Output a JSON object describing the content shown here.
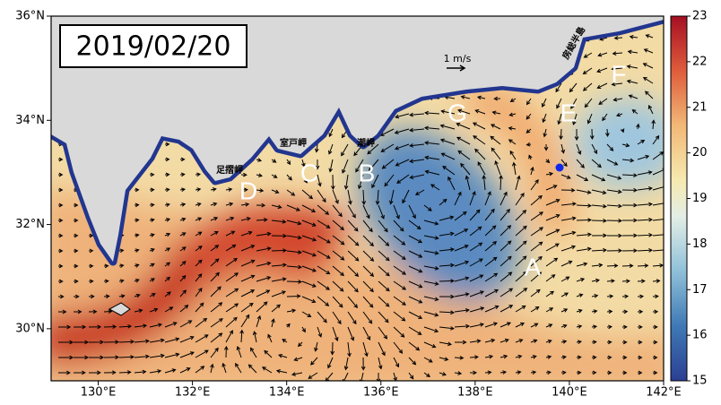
{
  "map": {
    "date": "2019/02/20",
    "lon_axis": {
      "lim": [
        129,
        142
      ],
      "ticks": [
        {
          "value": 130,
          "label": "130°E"
        },
        {
          "value": 132,
          "label": "132°E"
        },
        {
          "value": 134,
          "label": "134°E"
        },
        {
          "value": 136,
          "label": "136°E"
        },
        {
          "value": 138,
          "label": "138°E"
        },
        {
          "value": 140,
          "label": "140°E"
        },
        {
          "value": 142,
          "label": "142°E"
        }
      ]
    },
    "lat_axis": {
      "lim": [
        29,
        36
      ],
      "ticks": [
        {
          "value": 30,
          "label": "30°N"
        },
        {
          "value": 32,
          "label": "32°N"
        },
        {
          "value": 34,
          "label": "34°N"
        },
        {
          "value": 36,
          "label": "36°N"
        }
      ]
    },
    "colorbar": {
      "lim": [
        15,
        23
      ],
      "ticks": [
        15,
        16,
        17,
        18,
        19,
        20,
        21,
        22,
        23
      ]
    },
    "scale_arrow": "1 m/s",
    "region_labels": [
      "A",
      "B",
      "C",
      "D",
      "E",
      "F",
      "G"
    ],
    "place_names": [
      "室戸岬",
      "足摺岬",
      "潮岬",
      "房総半島"
    ]
  }
}
